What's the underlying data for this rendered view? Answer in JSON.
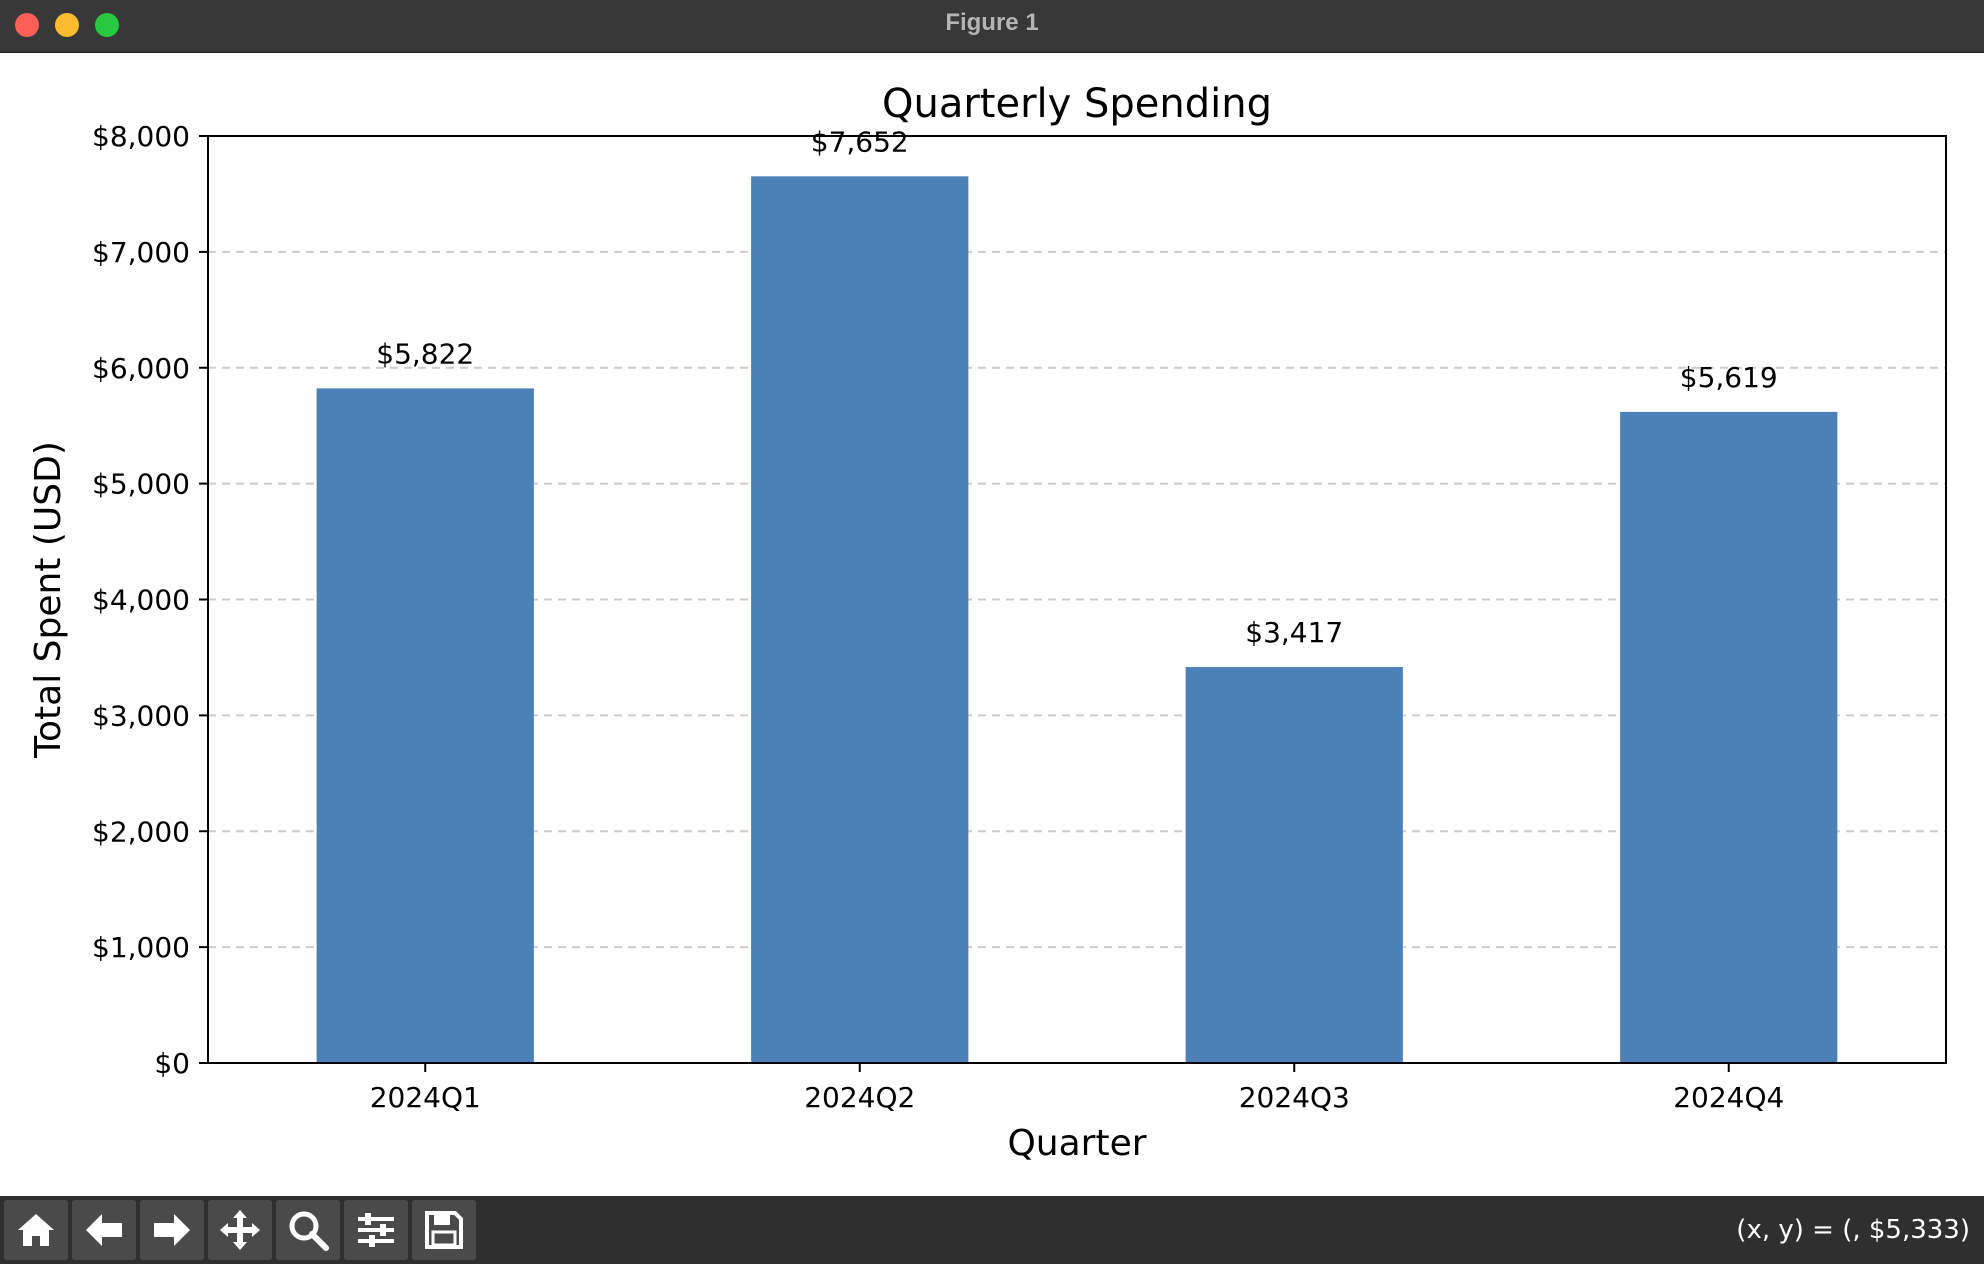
{
  "window": {
    "title": "Figure 1"
  },
  "chart_data": {
    "type": "bar",
    "title": "Quarterly Spending",
    "xlabel": "Quarter",
    "ylabel": "Total Spent (USD)",
    "categories": [
      "2024Q1",
      "2024Q2",
      "2024Q3",
      "2024Q4"
    ],
    "values": [
      5822,
      7652,
      3417,
      5619
    ],
    "value_labels": [
      "$5,822",
      "$7,652",
      "$3,417",
      "$5,619"
    ],
    "ylim": [
      0,
      8000
    ],
    "yticks": [
      0,
      1000,
      2000,
      3000,
      4000,
      5000,
      6000,
      7000,
      8000
    ],
    "ytick_labels": [
      "$0",
      "$1,000",
      "$2,000",
      "$3,000",
      "$4,000",
      "$5,000",
      "$6,000",
      "$7,000",
      "$8,000"
    ],
    "grid": "y-dashed",
    "bar_color": "#4c81b7"
  },
  "toolbar": {
    "buttons": [
      {
        "name": "home-button",
        "icon": "home-icon"
      },
      {
        "name": "back-button",
        "icon": "arrow-left-icon"
      },
      {
        "name": "forward-button",
        "icon": "arrow-right-icon"
      },
      {
        "name": "pan-button",
        "icon": "move-icon"
      },
      {
        "name": "zoom-button",
        "icon": "magnifier-icon"
      },
      {
        "name": "configure-subplots-button",
        "icon": "sliders-icon"
      },
      {
        "name": "save-button",
        "icon": "floppy-disk-icon"
      }
    ],
    "coords_text": "(x, y) = (, $5,333)"
  }
}
